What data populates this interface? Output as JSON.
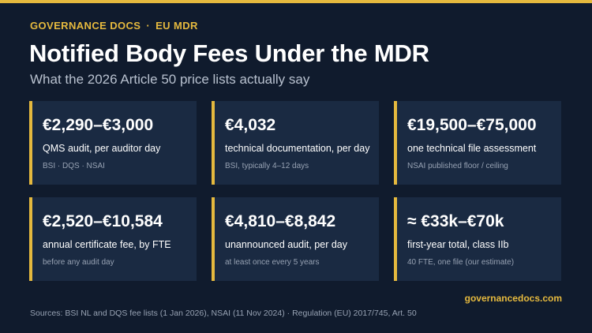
{
  "header": {
    "eyebrow_left": "GOVERNANCE DOCS",
    "eyebrow_separator": "·",
    "eyebrow_right": "EU MDR",
    "title": "Notified Body Fees Under the MDR",
    "subtitle": "What the 2026 Article 50 price lists actually say"
  },
  "cards": [
    {
      "value": "€2,290–€3,000",
      "desc": "QMS audit, per auditor day",
      "note": "BSI · DQS · NSAI"
    },
    {
      "value": "€4,032",
      "desc": "technical documentation, per day",
      "note": "BSI, typically 4–12 days"
    },
    {
      "value": "€19,500–€75,000",
      "desc": "one technical file assessment",
      "note": "NSAI published floor / ceiling"
    },
    {
      "value": "€2,520–€10,584",
      "desc": "annual certificate fee, by FTE",
      "note": "before any audit day"
    },
    {
      "value": "€4,810–€8,842",
      "desc": "unannounced audit, per day",
      "note": "at least once every 5 years"
    },
    {
      "value": "≈ €33k–€70k",
      "desc": "first-year total, class IIb",
      "note": "40 FTE, one file (our estimate)"
    }
  ],
  "footer": {
    "site": "governancedocs.com",
    "sources": "Sources: BSI NL and DQS fee lists (1 Jan 2026), NSAI (11 Nov 2024) · Regulation (EU) 2017/745, Art. 50"
  },
  "colors": {
    "background": "#101b2d",
    "card": "#1a2a42",
    "accent": "#e5b93e"
  }
}
